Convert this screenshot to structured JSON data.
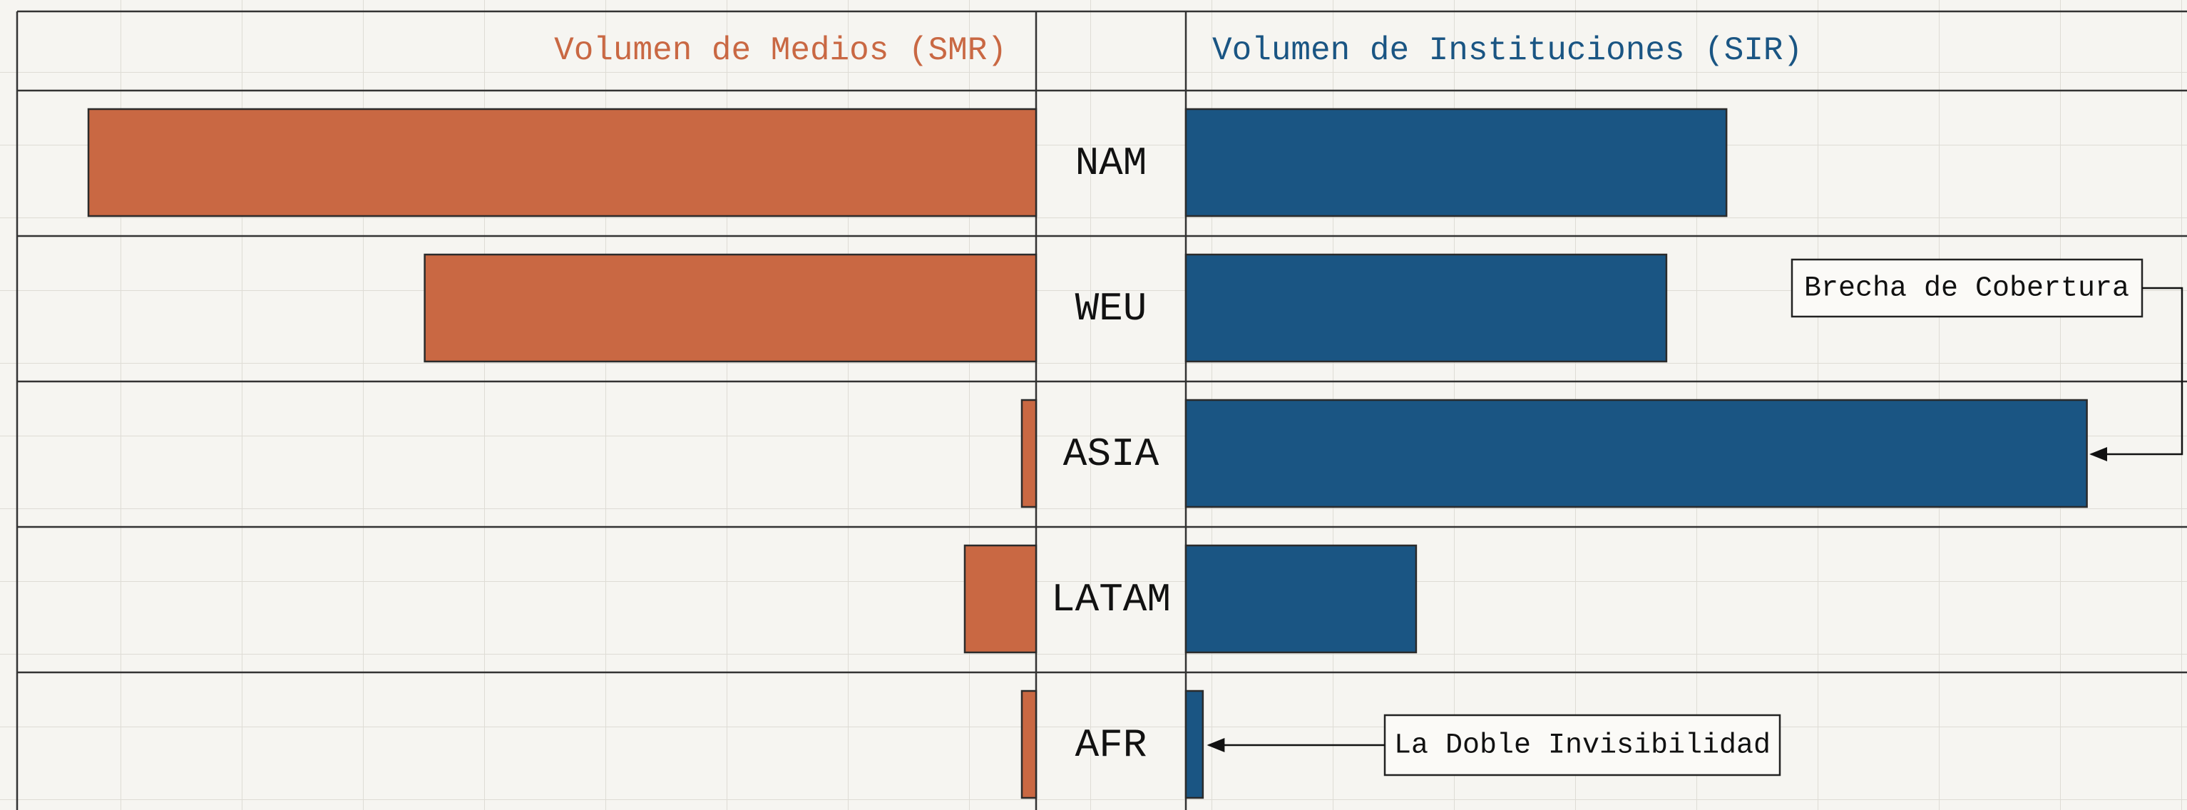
{
  "chart_data": {
    "type": "butterfly",
    "categories": [
      "NAM",
      "WEU",
      "ASIA",
      "LATAM",
      "AFR"
    ],
    "series": [
      {
        "name": "Volumen de Medios (SMR)",
        "color": "#c96843",
        "values": [
          93,
          60,
          1.4,
          7,
          1.4
        ]
      },
      {
        "name": "Volumen de Instituciones (SIR)",
        "color": "#1a5583",
        "values": [
          54,
          48,
          90,
          23,
          1.7
        ]
      }
    ],
    "xlim": [
      0,
      100
    ],
    "annotations": [
      {
        "text": "Brecha de Cobertura"
      },
      {
        "text": "La Doble Invisibilidad"
      }
    ]
  }
}
